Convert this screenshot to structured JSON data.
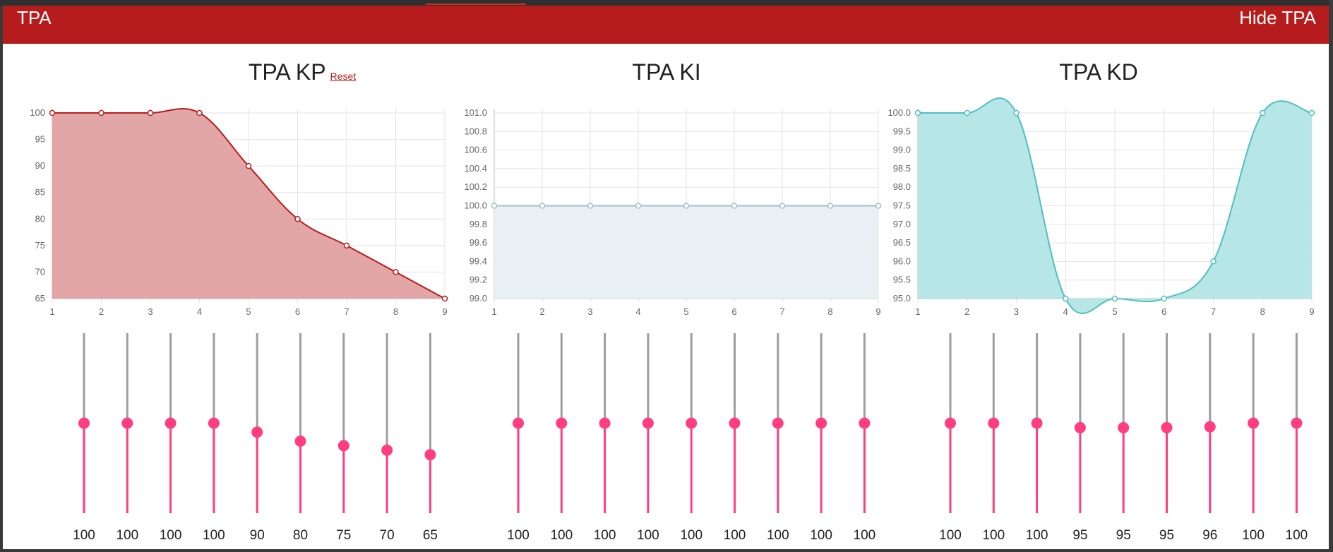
{
  "header": {
    "title": "TPA",
    "hide_label": "Hide TPA"
  },
  "colors": {
    "header_bg": "#b71c1c",
    "kp_line": "#b71c1c",
    "kp_fill": "#e0a1a1",
    "ki_line": "#9fbfc9",
    "ki_fill": "#e8eff2",
    "kd_line": "#4fc0c0",
    "kd_fill": "#b2e5e5",
    "slider_active": "#ff3d7f",
    "slider_track": "#9e9e9e"
  },
  "reset_label": "Reset",
  "charts": [
    {
      "id": "kp",
      "title": "TPA KP",
      "has_reset": true,
      "chart_data": {
        "type": "area",
        "x": [
          1,
          2,
          3,
          4,
          5,
          6,
          7,
          8,
          9
        ],
        "y": [
          100,
          100,
          100,
          100,
          90,
          80,
          75,
          70,
          65
        ],
        "ylim": [
          65,
          100
        ],
        "yticks": [
          "100",
          "95",
          "90",
          "85",
          "80",
          "75",
          "70",
          "65"
        ],
        "grid": true
      },
      "slider_values": [
        "100",
        "100",
        "100",
        "100",
        "90",
        "80",
        "75",
        "70",
        "65"
      ]
    },
    {
      "id": "ki",
      "title": "TPA KI",
      "has_reset": false,
      "chart_data": {
        "type": "area",
        "x": [
          1,
          2,
          3,
          4,
          5,
          6,
          7,
          8,
          9
        ],
        "y": [
          100,
          100,
          100,
          100,
          100,
          100,
          100,
          100,
          100
        ],
        "ylim": [
          99,
          101
        ],
        "yticks": [
          "101.0",
          "100.8",
          "100.6",
          "100.4",
          "100.2",
          "100.0",
          "99.8",
          "99.6",
          "99.4",
          "99.2",
          "99.0"
        ],
        "grid": true
      },
      "slider_values": [
        "100",
        "100",
        "100",
        "100",
        "100",
        "100",
        "100",
        "100",
        "100"
      ]
    },
    {
      "id": "kd",
      "title": "TPA KD",
      "has_reset": false,
      "chart_data": {
        "type": "area",
        "x": [
          1,
          2,
          3,
          4,
          5,
          6,
          7,
          8,
          9
        ],
        "y": [
          100,
          100,
          100,
          95,
          95,
          95,
          96,
          100,
          100
        ],
        "ylim": [
          95,
          100
        ],
        "yticks": [
          "100.0",
          "99.5",
          "99.0",
          "98.5",
          "98.0",
          "97.5",
          "97.0",
          "96.5",
          "96.0",
          "95.5",
          "95.0"
        ],
        "grid": true
      },
      "slider_values": [
        "100",
        "100",
        "100",
        "95",
        "95",
        "95",
        "96",
        "100",
        "100"
      ]
    }
  ]
}
